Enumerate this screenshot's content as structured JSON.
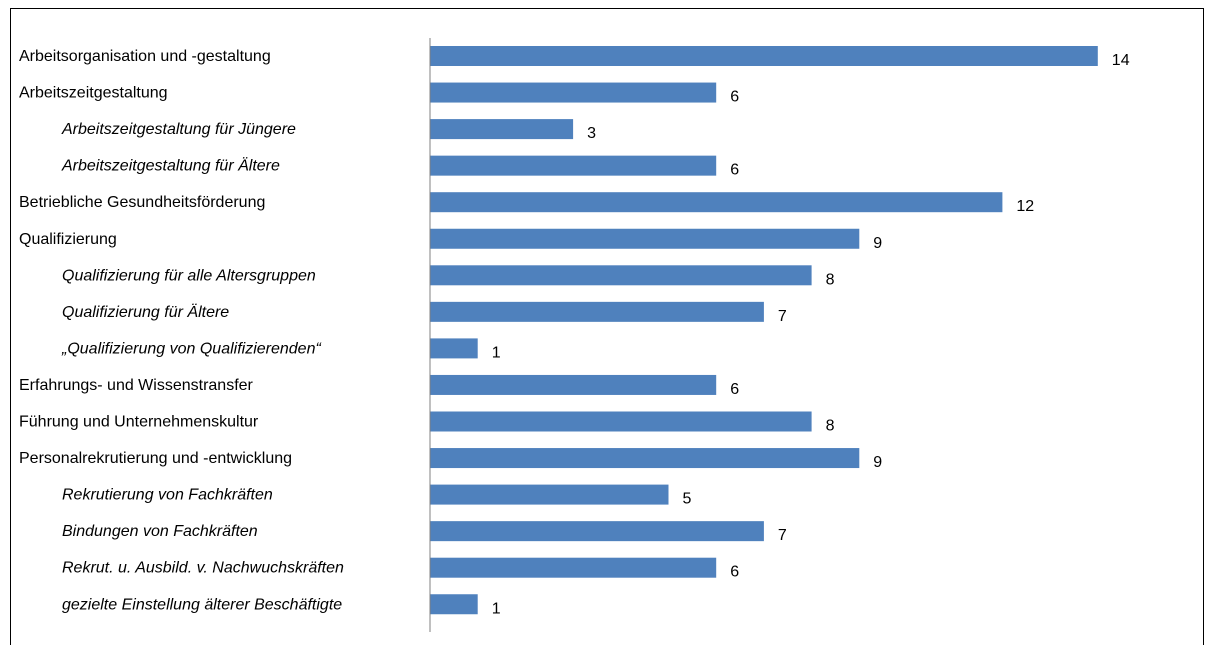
{
  "chart_data": {
    "type": "bar",
    "orientation": "horizontal",
    "categories": [
      "Arbeitsorganisation und -gestaltung",
      "Arbeitszeitgestaltung",
      "Arbeitszeitgestaltung für Jüngere",
      "Arbeitszeitgestaltung für Ältere",
      "Betriebliche Gesundheitsförderung",
      "Qualifizierung",
      "Qualifizierung für alle Altersgruppen",
      "Qualifizierung für Ältere",
      "„Qualifizierung von Qualifizierenden“",
      "Erfahrungs- und Wissenstransfer",
      "Führung und Unternehmenskultur",
      "Personalrekrutierung und -entwicklung",
      "Rekrutierung von Fachkräften",
      "Bindungen von Fachkräften",
      "Rekrut. u. Ausbild. v. Nachwuchskräften",
      "gezielte Einstellung älterer Beschäftigte"
    ],
    "subcategory": [
      false,
      false,
      true,
      true,
      false,
      false,
      true,
      true,
      true,
      false,
      false,
      false,
      true,
      true,
      true,
      true
    ],
    "values": [
      14,
      6,
      3,
      6,
      12,
      9,
      8,
      7,
      1,
      6,
      8,
      9,
      5,
      7,
      6,
      1
    ],
    "xlim": [
      0,
      15.5
    ],
    "bar_color": "#4f81bd",
    "title": "",
    "xlabel": "",
    "ylabel": "",
    "grid": false,
    "legend": "none"
  }
}
